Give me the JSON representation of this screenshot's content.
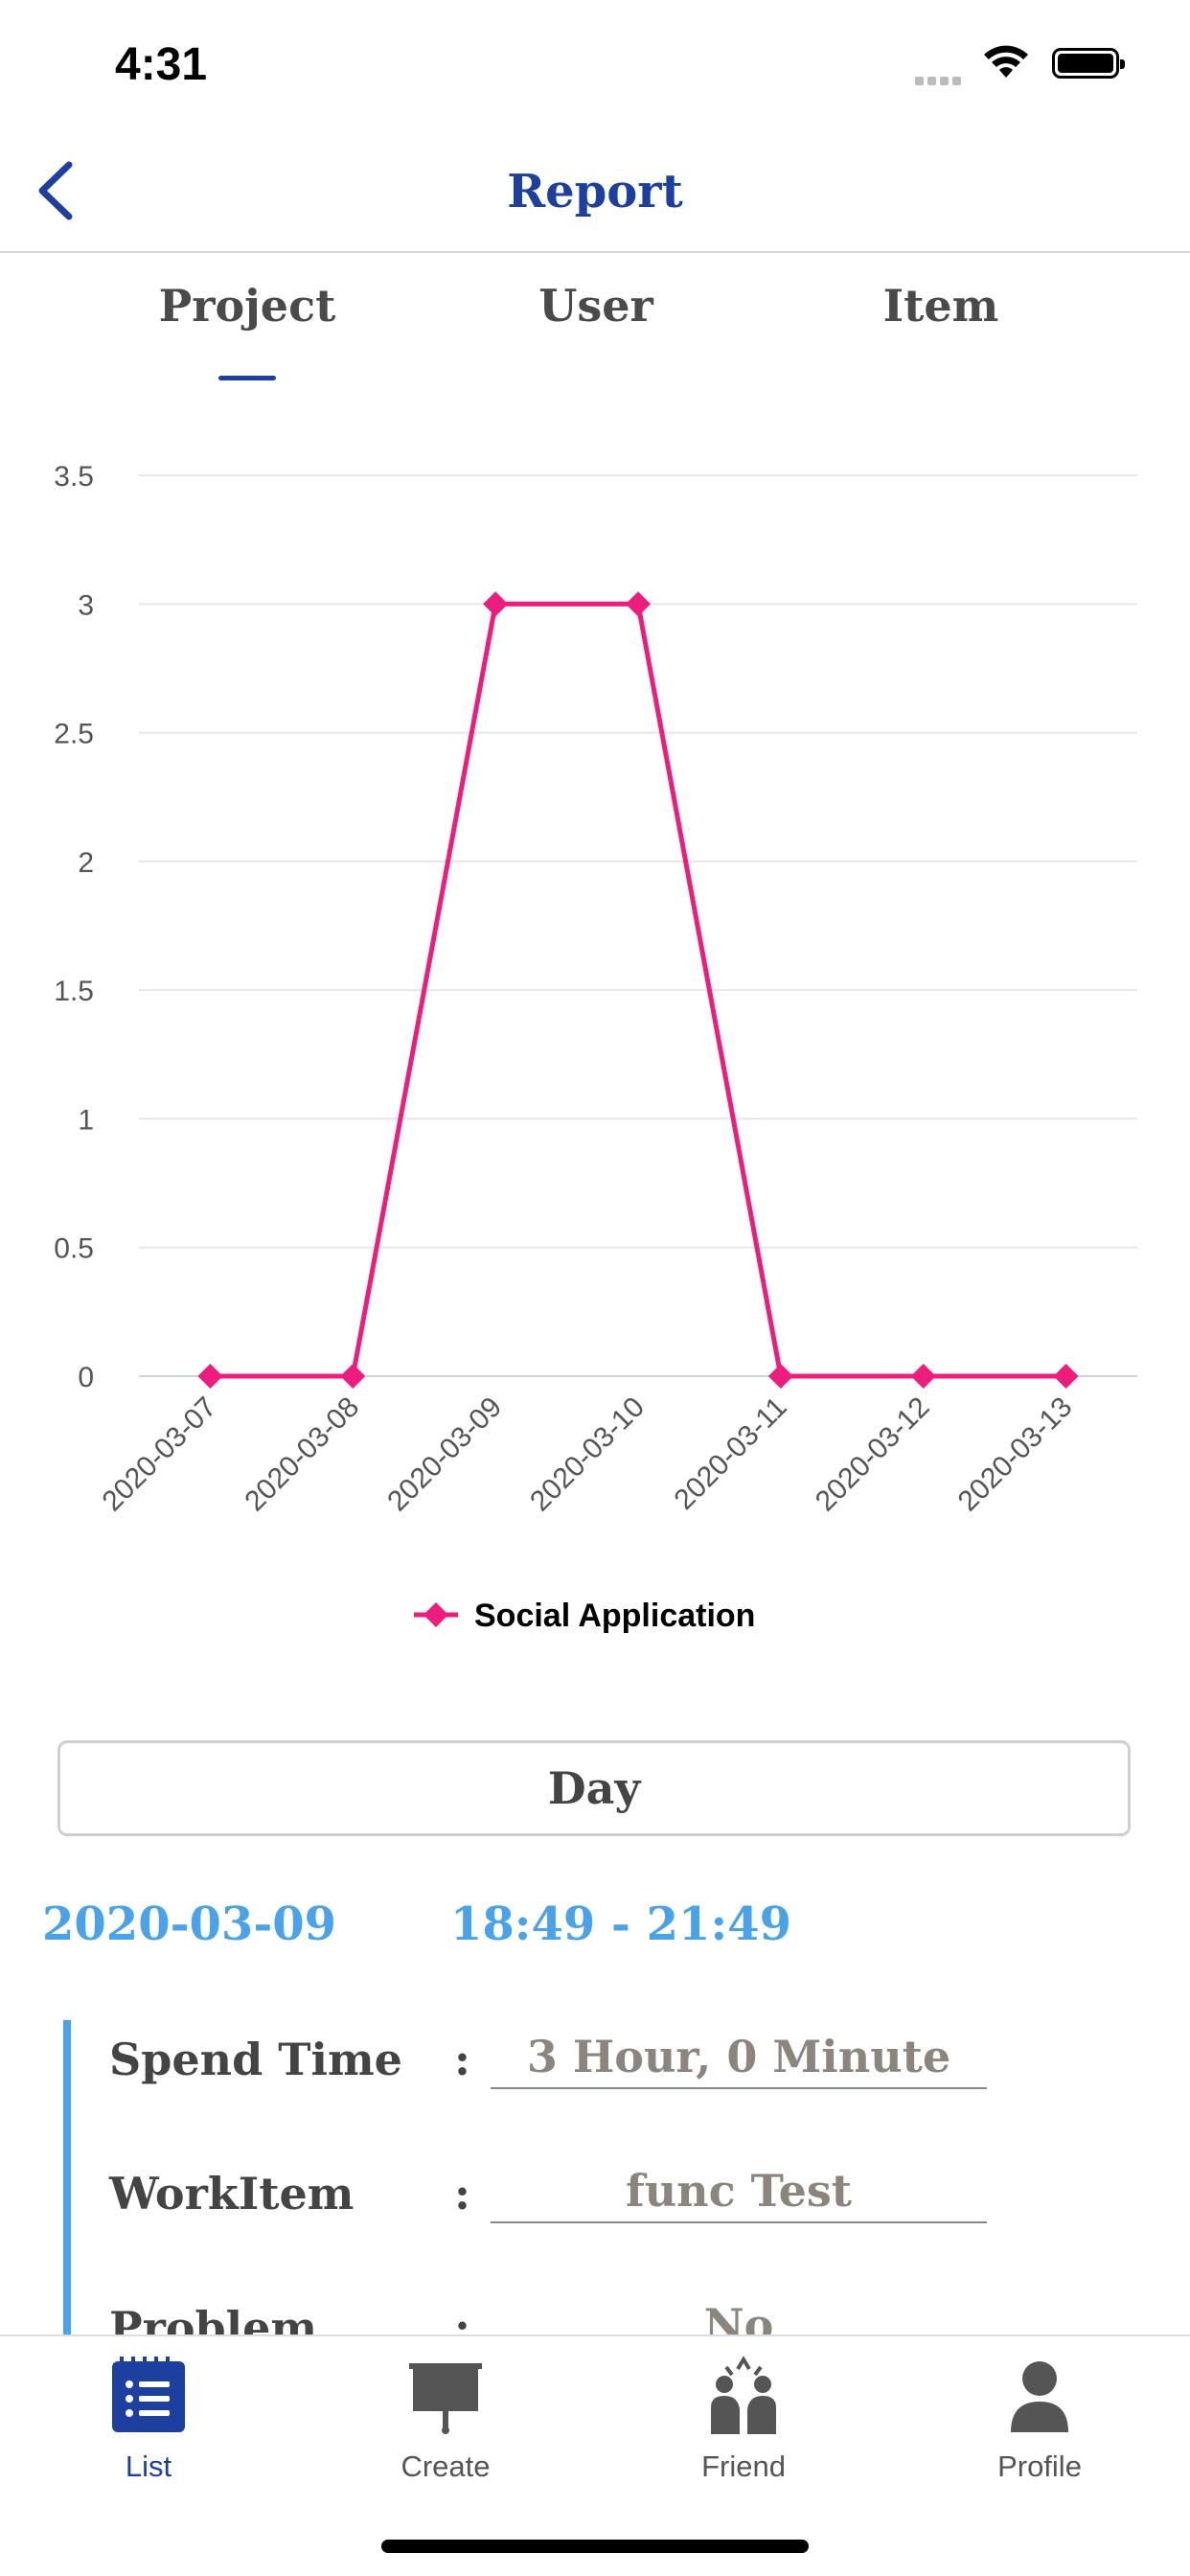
{
  "status_bar": {
    "time": "4:31"
  },
  "nav": {
    "title": "Report",
    "back_icon": "chevron-left-icon"
  },
  "tabs": [
    {
      "label": "Project",
      "active": true
    },
    {
      "label": "User",
      "active": false
    },
    {
      "label": "Item",
      "active": false
    }
  ],
  "chart_data": {
    "type": "line",
    "x": [
      "2020-03-07",
      "2020-03-08",
      "2020-03-09",
      "2020-03-10",
      "2020-03-11",
      "2020-03-12",
      "2020-03-13"
    ],
    "series": [
      {
        "name": "Social Application",
        "values": [
          0,
          0,
          3,
          3,
          0,
          0,
          0
        ],
        "color": "#ee1c7d",
        "marker": "diamond"
      }
    ],
    "yticks": [
      "3.5",
      "3",
      "2.5",
      "2",
      "1.5",
      "1",
      "0.5",
      "0"
    ],
    "ylim": [
      0,
      3.5
    ],
    "grid": true,
    "legend": "bottom"
  },
  "day_button": {
    "label": "Day"
  },
  "record": {
    "date": "2020-03-09",
    "time_range": "18:49 - 21:49",
    "rows": [
      {
        "label": "Spend Time",
        "colon": ":",
        "value": "3 Hour, 0 Minute"
      },
      {
        "label": "WorkItem",
        "colon": ":",
        "value": "func Test"
      },
      {
        "label": "Problem",
        "colon": ":",
        "value": "No"
      }
    ]
  },
  "tab_bar": {
    "items": [
      {
        "label": "List",
        "icon": "list-icon",
        "active": true
      },
      {
        "label": "Create",
        "icon": "presentation-board-icon",
        "active": false
      },
      {
        "label": "Friend",
        "icon": "friends-icon",
        "active": false
      },
      {
        "label": "Profile",
        "icon": "person-icon",
        "active": false
      }
    ],
    "active_color": "#1d3fa0",
    "inactive_color": "#555555"
  }
}
